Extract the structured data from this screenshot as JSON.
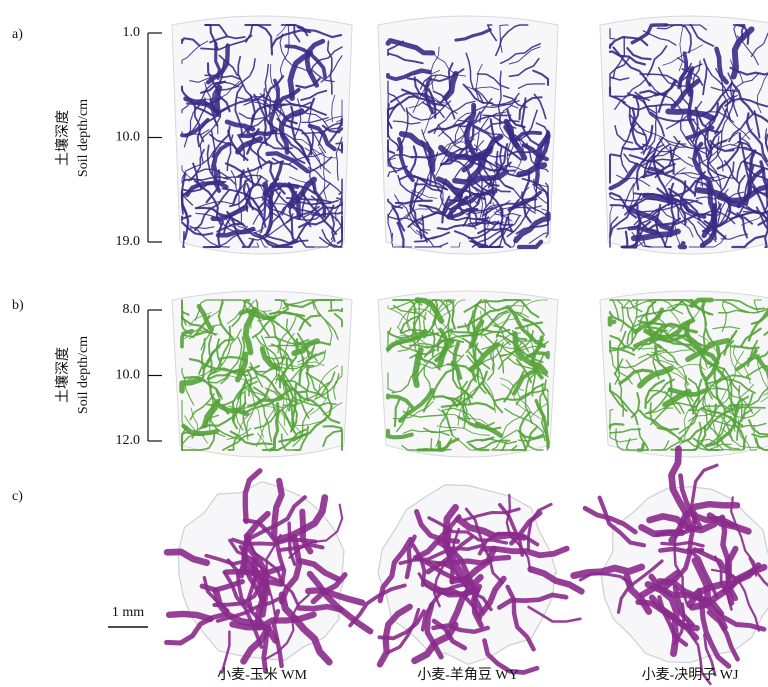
{
  "panels": [
    {
      "label": "a)",
      "y_label": [
        "土壤深度",
        "Soil depth/cm"
      ],
      "ylim": [
        1,
        19
      ],
      "yticks": [
        {
          "value": 1,
          "label": "1.0"
        },
        {
          "value": 10,
          "label": "10.0"
        },
        {
          "value": 19,
          "label": "19.0"
        }
      ],
      "color": "#3a2a85"
    },
    {
      "label": "b)",
      "y_label": [
        "土壤深度",
        "Soil depth/cm"
      ],
      "ylim": [
        8,
        12
      ],
      "yticks": [
        {
          "value": 8,
          "label": "8.0"
        },
        {
          "value": 10,
          "label": "10.0"
        },
        {
          "value": 12,
          "label": "12.0"
        }
      ],
      "color": "#55a33a"
    },
    {
      "label": "c)",
      "scale_bar": "1 mm",
      "color": "#8a2a8c"
    }
  ],
  "columns": [
    "小麦-玉米 WM",
    "小麦-羊角豆 WY",
    "小麦-决明子 WJ"
  ]
}
